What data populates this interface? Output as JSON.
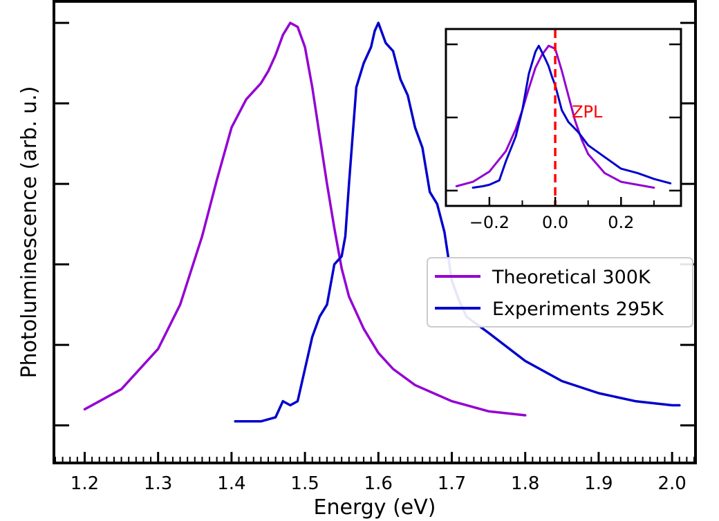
{
  "chart_data": [
    {
      "type": "line",
      "xlabel": "Energy (eV)",
      "ylabel": "Photoluminescence (arb. u.)",
      "xlim": [
        1.16,
        2.03
      ],
      "ylim": [
        -0.09,
        1.05
      ],
      "x_ticks": [
        "1.2",
        "1.3",
        "1.4",
        "1.5",
        "1.6",
        "1.7",
        "1.8",
        "1.9",
        "2.0"
      ],
      "y_tick_labels_shown": false,
      "legend": {
        "position": "center-right",
        "entries": [
          "Theoretical 300K",
          "Experiments 295K"
        ]
      },
      "series": [
        {
          "name": "Theoretical 300K",
          "color": "#9400d3",
          "x": [
            1.2,
            1.25,
            1.3,
            1.33,
            1.36,
            1.38,
            1.4,
            1.42,
            1.44,
            1.45,
            1.46,
            1.47,
            1.48,
            1.49,
            1.5,
            1.51,
            1.52,
            1.53,
            1.54,
            1.55,
            1.56,
            1.58,
            1.6,
            1.62,
            1.65,
            1.7,
            1.75,
            1.8
          ],
          "y": [
            0.04,
            0.09,
            0.19,
            0.3,
            0.47,
            0.61,
            0.74,
            0.81,
            0.85,
            0.88,
            0.92,
            0.97,
            1.0,
            0.99,
            0.94,
            0.84,
            0.72,
            0.6,
            0.49,
            0.39,
            0.32,
            0.24,
            0.18,
            0.14,
            0.1,
            0.06,
            0.035,
            0.025
          ]
        },
        {
          "name": "Experiments 295K",
          "color": "#0000cd",
          "x": [
            1.405,
            1.42,
            1.44,
            1.46,
            1.47,
            1.48,
            1.49,
            1.5,
            1.51,
            1.52,
            1.53,
            1.54,
            1.55,
            1.555,
            1.56,
            1.565,
            1.57,
            1.58,
            1.59,
            1.595,
            1.6,
            1.61,
            1.62,
            1.63,
            1.64,
            1.65,
            1.66,
            1.67,
            1.68,
            1.69,
            1.7,
            1.71,
            1.72,
            1.75,
            1.8,
            1.85,
            1.9,
            1.95,
            2.0,
            2.01
          ],
          "y": [
            0.01,
            0.01,
            0.01,
            0.02,
            0.06,
            0.05,
            0.06,
            0.14,
            0.22,
            0.27,
            0.3,
            0.4,
            0.42,
            0.47,
            0.6,
            0.72,
            0.84,
            0.9,
            0.94,
            0.98,
            1.0,
            0.95,
            0.93,
            0.86,
            0.82,
            0.74,
            0.69,
            0.58,
            0.55,
            0.48,
            0.36,
            0.31,
            0.27,
            0.23,
            0.16,
            0.11,
            0.08,
            0.06,
            0.05,
            0.05
          ]
        }
      ]
    },
    {
      "type": "line",
      "role": "inset",
      "xlim": [
        -0.33,
        0.38
      ],
      "ylim": [
        -0.1,
        1.1
      ],
      "x_ticks": [
        "−0.2",
        "0.0",
        "0.2"
      ],
      "y_tick_labels_shown": false,
      "annotations": [
        {
          "type": "vline",
          "x": 0.0,
          "color": "#ff0000",
          "style": "dashed",
          "label": "ZPL"
        }
      ],
      "series": [
        {
          "name": "Theoretical 300K",
          "color": "#9400d3",
          "x": [
            -0.3,
            -0.25,
            -0.2,
            -0.15,
            -0.12,
            -0.1,
            -0.08,
            -0.06,
            -0.04,
            -0.02,
            0.0,
            0.02,
            0.04,
            0.06,
            0.08,
            0.1,
            0.15,
            0.2,
            0.3
          ],
          "y": [
            0.03,
            0.06,
            0.13,
            0.27,
            0.42,
            0.55,
            0.7,
            0.84,
            0.93,
            0.99,
            0.97,
            0.82,
            0.65,
            0.48,
            0.35,
            0.25,
            0.12,
            0.06,
            0.02
          ]
        },
        {
          "name": "Experiments 295K",
          "color": "#0000cd",
          "x": [
            -0.25,
            -0.22,
            -0.2,
            -0.17,
            -0.15,
            -0.12,
            -0.1,
            -0.08,
            -0.06,
            -0.05,
            -0.03,
            -0.02,
            -0.01,
            0.0,
            0.02,
            0.04,
            0.07,
            0.1,
            0.15,
            0.2,
            0.25,
            0.3,
            0.35
          ],
          "y": [
            0.02,
            0.03,
            0.04,
            0.07,
            0.2,
            0.37,
            0.55,
            0.8,
            0.95,
            0.99,
            0.9,
            0.85,
            0.78,
            0.72,
            0.55,
            0.47,
            0.4,
            0.31,
            0.23,
            0.15,
            0.12,
            0.08,
            0.05
          ]
        }
      ]
    }
  ]
}
